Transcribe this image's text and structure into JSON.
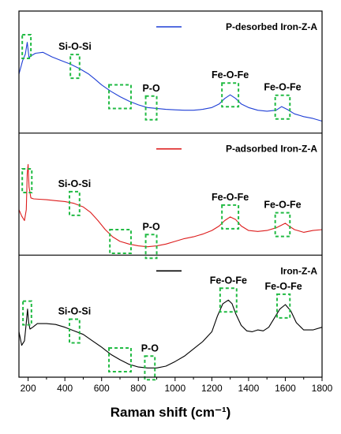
{
  "chart_data": {
    "type": "line",
    "title": "",
    "xlabel": "Raman shift (cm⁻¹)",
    "ylabel": "",
    "xlim": [
      150,
      1800
    ],
    "xticks": [
      200,
      400,
      600,
      800,
      1000,
      1200,
      1400,
      1600,
      1800
    ],
    "grid": false,
    "layout": "three stacked panels sharing x-axis",
    "panels": [
      {
        "legend": "P-desorbed Iron-Z-A",
        "color": "#1f3fd6",
        "ylim": [
          0,
          1
        ],
        "x": [
          150,
          170,
          185,
          195,
          205,
          215,
          240,
          280,
          330,
          380,
          430,
          480,
          530,
          560,
          600,
          650,
          700,
          750,
          800,
          850,
          900,
          950,
          1000,
          1050,
          1100,
          1150,
          1200,
          1240,
          1270,
          1300,
          1330,
          1360,
          1400,
          1450,
          1500,
          1550,
          1580,
          1610,
          1650,
          1700,
          1750,
          1800
        ],
        "values": [
          0.6,
          0.75,
          0.82,
          0.95,
          0.78,
          0.8,
          0.83,
          0.84,
          0.79,
          0.75,
          0.71,
          0.66,
          0.6,
          0.55,
          0.48,
          0.41,
          0.35,
          0.3,
          0.26,
          0.23,
          0.22,
          0.21,
          0.205,
          0.2,
          0.2,
          0.21,
          0.23,
          0.27,
          0.33,
          0.37,
          0.33,
          0.27,
          0.23,
          0.2,
          0.19,
          0.2,
          0.24,
          0.21,
          0.16,
          0.13,
          0.11,
          0.08
        ],
        "annotations": [
          {
            "label": "Si-O-Si",
            "box_x": [
              430,
              480
            ]
          },
          {
            "label": "P-O",
            "box_x": [
              840,
              900
            ]
          },
          {
            "label": "Fe-O-Fe",
            "box_x": [
              1255,
              1345
            ]
          },
          {
            "label": "Fe-O-Fe",
            "box_x": [
              1545,
              1625
            ]
          }
        ],
        "extra_boxes": [
          [
            168,
            215
          ],
          [
            640,
            760
          ]
        ]
      },
      {
        "legend": "P-adsorbed Iron-Z-A",
        "color": "#dd1c1c",
        "ylim": [
          0,
          1
        ],
        "x": [
          150,
          165,
          180,
          190,
          195,
          200,
          205,
          215,
          230,
          260,
          300,
          350,
          400,
          450,
          500,
          540,
          580,
          620,
          660,
          700,
          750,
          800,
          850,
          900,
          950,
          1000,
          1050,
          1100,
          1150,
          1200,
          1240,
          1270,
          1300,
          1330,
          1360,
          1400,
          1450,
          1500,
          1550,
          1580,
          1600,
          1620,
          1650,
          1700,
          1750,
          1800
        ],
        "values": [
          0.45,
          0.38,
          0.33,
          0.45,
          0.85,
          0.95,
          0.7,
          0.58,
          0.57,
          0.565,
          0.56,
          0.55,
          0.54,
          0.52,
          0.48,
          0.42,
          0.33,
          0.23,
          0.15,
          0.1,
          0.07,
          0.05,
          0.04,
          0.05,
          0.07,
          0.1,
          0.13,
          0.15,
          0.18,
          0.22,
          0.27,
          0.33,
          0.37,
          0.34,
          0.27,
          0.22,
          0.21,
          0.22,
          0.25,
          0.28,
          0.3,
          0.27,
          0.23,
          0.2,
          0.22,
          0.23
        ],
        "annotations": [
          {
            "label": "Si-O-Si",
            "box_x": [
              425,
              480
            ]
          },
          {
            "label": "P-O",
            "box_x": [
              840,
              900
            ]
          },
          {
            "label": "Fe-O-Fe",
            "box_x": [
              1255,
              1345
            ]
          },
          {
            "label": "Fe-O-Fe",
            "box_x": [
              1545,
              1625
            ]
          }
        ],
        "extra_boxes": [
          [
            168,
            220
          ],
          [
            645,
            760
          ]
        ]
      },
      {
        "legend": "Iron-Z-A",
        "color": "#000000",
        "ylim": [
          0,
          1
        ],
        "x": [
          150,
          165,
          180,
          190,
          197,
          203,
          210,
          225,
          250,
          300,
          350,
          400,
          450,
          500,
          550,
          600,
          650,
          700,
          750,
          800,
          850,
          900,
          950,
          1000,
          1050,
          1100,
          1150,
          1200,
          1230,
          1260,
          1290,
          1310,
          1330,
          1360,
          1390,
          1420,
          1450,
          1480,
          1510,
          1540,
          1570,
          1600,
          1630,
          1660,
          1700,
          1750,
          1800
        ],
        "values": [
          0.45,
          0.3,
          0.35,
          0.55,
          0.7,
          0.55,
          0.48,
          0.5,
          0.54,
          0.54,
          0.53,
          0.5,
          0.46,
          0.42,
          0.35,
          0.28,
          0.2,
          0.14,
          0.09,
          0.06,
          0.05,
          0.05,
          0.07,
          0.12,
          0.18,
          0.26,
          0.34,
          0.45,
          0.62,
          0.76,
          0.8,
          0.76,
          0.65,
          0.52,
          0.46,
          0.45,
          0.47,
          0.46,
          0.5,
          0.6,
          0.7,
          0.75,
          0.68,
          0.55,
          0.47,
          0.47,
          0.5
        ],
        "annotations": [
          {
            "label": "Si-O-Si",
            "box_x": [
              425,
              480
            ]
          },
          {
            "label": "P-O",
            "box_x": [
              835,
              890
            ]
          },
          {
            "label": "Fe-O-Fe",
            "box_x": [
              1245,
              1335
            ]
          },
          {
            "label": "Fe-O-Fe",
            "box_x": [
              1555,
              1625
            ]
          }
        ],
        "extra_boxes": [
          [
            172,
            218
          ],
          [
            640,
            760
          ]
        ]
      }
    ]
  },
  "colors": {
    "annotation_box": "#22bb44",
    "axis": "#000000"
  }
}
